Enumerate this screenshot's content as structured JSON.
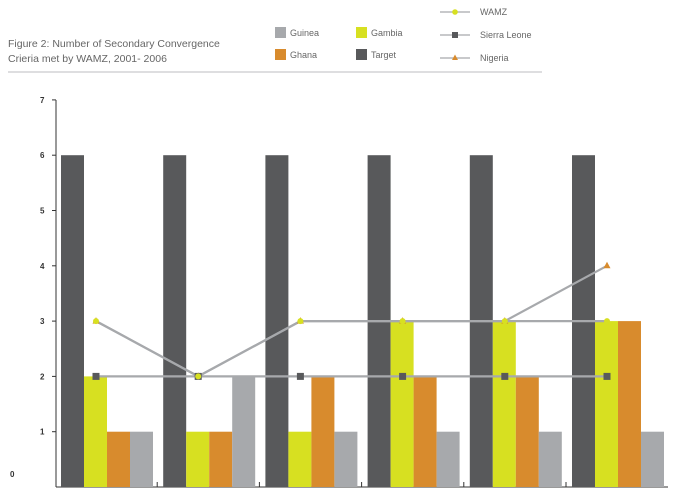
{
  "title_lines": [
    "Figure 2: Number of Secondary Convergence",
    "Crieria met by WAMZ, 2001- 2006"
  ],
  "chart_data": {
    "type": "bar",
    "title": "Figure 2: Number of Secondary Convergence Crieria met by WAMZ, 2001- 2006",
    "xlabel": "",
    "ylabel": "",
    "ylim": [
      0,
      7
    ],
    "yticks": [
      "0",
      "1",
      "2",
      "3",
      "4",
      "5",
      "6",
      "7"
    ],
    "categories": [
      "",
      "",
      "",
      "",
      "",
      ""
    ],
    "grid": false,
    "legend_position": "top",
    "bar_series": [
      {
        "name": "Target",
        "color": "#58595b",
        "values": [
          6,
          6,
          6,
          6,
          6,
          6
        ]
      },
      {
        "name": "Gambia",
        "color": "#d7e021",
        "values": [
          2,
          1,
          1,
          3,
          3,
          3
        ]
      },
      {
        "name": "Ghana",
        "color": "#d88b2d",
        "values": [
          1,
          1,
          2,
          2,
          2,
          3
        ]
      },
      {
        "name": "Guinea",
        "color": "#a7a9ac",
        "values": [
          1,
          2,
          1,
          1,
          1,
          1
        ]
      }
    ],
    "line_series": [
      {
        "name": "WAMZ",
        "color": "#d7e021",
        "marker": "circle",
        "values": [
          3,
          2,
          3,
          3,
          3,
          3
        ]
      },
      {
        "name": "Sierra Leone",
        "color": "#58595b",
        "marker": "square",
        "values": [
          2,
          2,
          2,
          2,
          2,
          2
        ]
      },
      {
        "name": "Nigeria",
        "color": "#d88b2d",
        "marker": "triangle",
        "values": [
          3,
          2,
          3,
          3,
          3,
          4
        ]
      }
    ],
    "line_stroke_color": "#a7a9ac"
  },
  "legend": {
    "bars": [
      {
        "label": "Guinea",
        "color": "#a7a9ac"
      },
      {
        "label": "Gambia",
        "color": "#d7e021"
      },
      {
        "label": "Ghana",
        "color": "#d88b2d"
      },
      {
        "label": "Target",
        "color": "#58595b"
      }
    ],
    "lines": [
      {
        "label": "WAMZ",
        "color": "#d7e021",
        "marker": "circle"
      },
      {
        "label": "Sierra Leone",
        "color": "#58595b",
        "marker": "square"
      },
      {
        "label": "Nigeria",
        "color": "#d88b2d",
        "marker": "triangle"
      }
    ]
  }
}
